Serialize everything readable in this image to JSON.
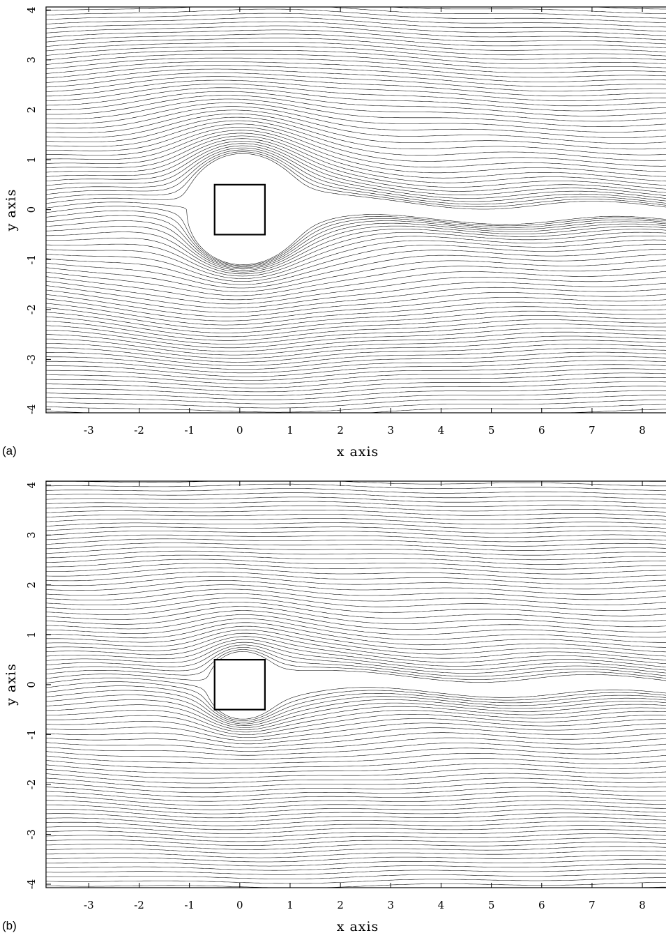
{
  "chart_data": [
    {
      "type": "streamline",
      "panel_label": "(a)",
      "x_label": "x axis",
      "y_label": "y axis",
      "xlim": [
        -3.85,
        8.47
      ],
      "ylim": [
        -4.07,
        4.06
      ],
      "xticks": [
        -3,
        -2,
        -1,
        0,
        1,
        2,
        3,
        4,
        5,
        6,
        7,
        8
      ],
      "yticks": [
        -4,
        -3,
        -2,
        -1,
        0,
        1,
        2,
        3,
        4
      ],
      "obstacle": {
        "x": [
          -0.5,
          0.5
        ],
        "y": [
          -0.5,
          0.5
        ]
      }
    },
    {
      "type": "streamline",
      "panel_label": "(b)",
      "x_label": "x axis",
      "y_label": "y axis",
      "xlim": [
        -3.85,
        8.47
      ],
      "ylim": [
        -4.07,
        4.08
      ],
      "xticks": [
        -3,
        -2,
        -1,
        0,
        1,
        2,
        3,
        4,
        5,
        6,
        7,
        8
      ],
      "yticks": [
        -4,
        -3,
        -2,
        -1,
        0,
        1,
        2,
        3,
        4
      ],
      "obstacle": {
        "x": [
          -0.5,
          0.5
        ],
        "y": [
          -0.5,
          0.5
        ]
      }
    }
  ]
}
